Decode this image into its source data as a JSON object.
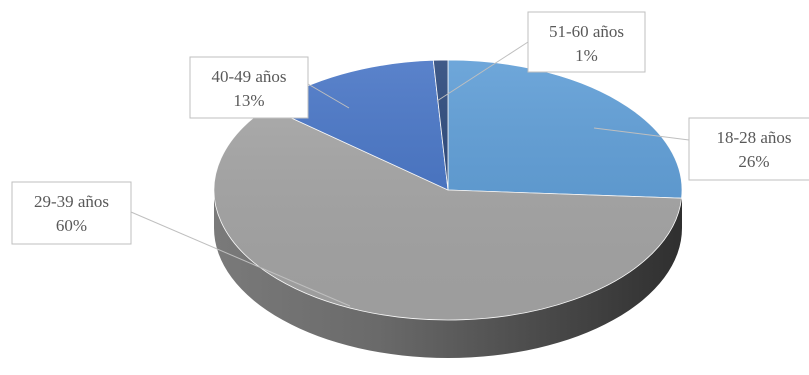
{
  "chart_data": {
    "type": "pie",
    "title": "",
    "slices": [
      {
        "label": "18-28 años",
        "value": 26,
        "display": "26%",
        "color": "#5B9BD5"
      },
      {
        "label": "29-39 años",
        "value": 60,
        "display": "60%",
        "color": "#A5A5A5"
      },
      {
        "label": "40-49 años",
        "value": 13,
        "display": "13%",
        "color": "#4472C4"
      },
      {
        "label": "51-60 años",
        "value": 1,
        "display": "1%",
        "color": "#264478"
      }
    ],
    "legend": "none",
    "style": "3d"
  }
}
